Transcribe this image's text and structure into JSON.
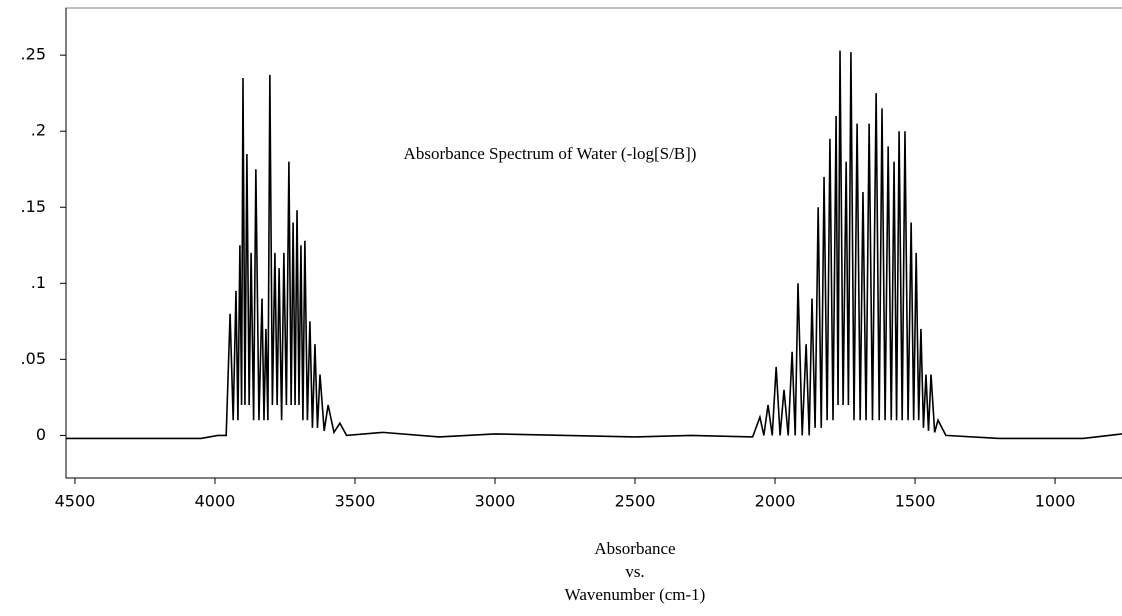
{
  "chart_data": {
    "type": "line",
    "title": "Absorbance Spectrum of Water (-log[S/B])",
    "xlabel": [
      "Absorbance",
      "vs.",
      "Wavenumber (cm-1)"
    ],
    "color": "#000000",
    "xlim": [
      4532,
      761
    ],
    "ylim": [
      -0.028,
      0.281
    ],
    "xticks": [
      4500,
      4000,
      3500,
      3000,
      2500,
      2000,
      1500,
      1000
    ],
    "yticks": [
      {
        "value": 0.25,
        "label": ".25"
      },
      {
        "value": 0.2,
        "label": ".2"
      },
      {
        "value": 0.15,
        "label": ".15"
      },
      {
        "value": 0.1,
        "label": ".1"
      },
      {
        "value": 0.05,
        "label": ".05"
      },
      0
    ],
    "x": [
      4532,
      4300,
      4050,
      3990,
      3960,
      3946,
      3935,
      3925,
      3918,
      3911,
      3905,
      3900,
      3893,
      3886,
      3878,
      3871,
      3862,
      3854,
      3843,
      3832,
      3825,
      3818,
      3811,
      3804,
      3795,
      3786,
      3778,
      3771,
      3762,
      3754,
      3745,
      3736,
      3728,
      3721,
      3714,
      3707,
      3700,
      3693,
      3686,
      3679,
      3670,
      3661,
      3652,
      3643,
      3634,
      3625,
      3610,
      3596,
      3575,
      3554,
      3530,
      3400,
      3200,
      3000,
      2500,
      2300,
      2080,
      2054,
      2040,
      2025,
      2010,
      1996,
      1982,
      1968,
      1953,
      1939,
      1928,
      1918,
      1903,
      1889,
      1878,
      1868,
      1857,
      1846,
      1835,
      1825,
      1814,
      1804,
      1793,
      1782,
      1775,
      1768,
      1757,
      1746,
      1738,
      1729,
      1718,
      1707,
      1696,
      1686,
      1675,
      1664,
      1652,
      1639,
      1628,
      1618,
      1607,
      1596,
      1585,
      1575,
      1566,
      1557,
      1546,
      1536,
      1525,
      1514,
      1505,
      1496,
      1487,
      1479,
      1470,
      1461,
      1452,
      1443,
      1430,
      1418,
      1390,
      1200,
      900,
      761
    ],
    "y": [
      -0.002,
      -0.002,
      -0.002,
      0.0,
      0.0,
      0.08,
      0.01,
      0.095,
      0.01,
      0.125,
      0.02,
      0.235,
      0.02,
      0.185,
      0.02,
      0.12,
      0.01,
      0.175,
      0.01,
      0.09,
      0.01,
      0.07,
      0.01,
      0.237,
      0.02,
      0.12,
      0.02,
      0.11,
      0.01,
      0.12,
      0.02,
      0.18,
      0.02,
      0.14,
      0.02,
      0.148,
      0.02,
      0.125,
      0.01,
      0.128,
      0.01,
      0.075,
      0.005,
      0.06,
      0.005,
      0.04,
      0.003,
      0.02,
      0.002,
      0.008,
      0.0,
      0.002,
      -0.001,
      0.001,
      -0.001,
      0.0,
      -0.001,
      0.012,
      0.0,
      0.02,
      0.0,
      0.045,
      0.0,
      0.03,
      0.0,
      0.055,
      0.0,
      0.1,
      0.0,
      0.06,
      0.0,
      0.09,
      0.005,
      0.15,
      0.005,
      0.17,
      0.01,
      0.195,
      0.01,
      0.21,
      0.02,
      0.253,
      0.02,
      0.18,
      0.02,
      0.252,
      0.01,
      0.205,
      0.01,
      0.16,
      0.01,
      0.205,
      0.01,
      0.225,
      0.01,
      0.215,
      0.01,
      0.19,
      0.01,
      0.18,
      0.01,
      0.2,
      0.01,
      0.2,
      0.01,
      0.14,
      0.01,
      0.12,
      0.01,
      0.07,
      0.005,
      0.04,
      0.003,
      0.04,
      0.002,
      0.01,
      0.0,
      -0.002,
      -0.002,
      0.001
    ]
  }
}
